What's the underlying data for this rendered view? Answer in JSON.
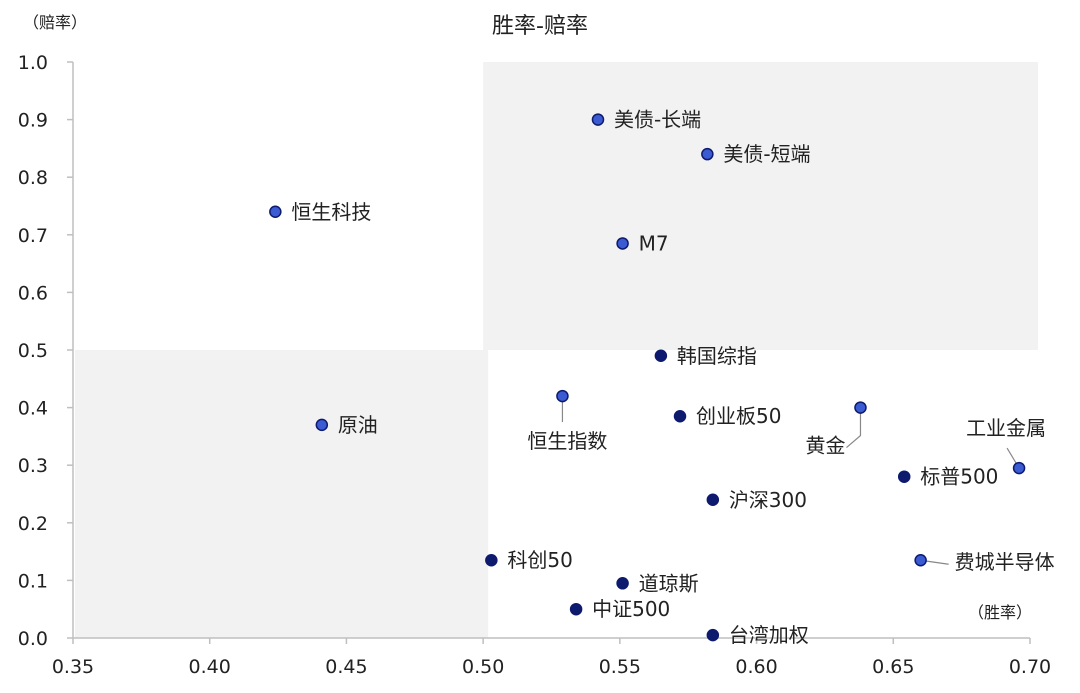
{
  "chart_data": {
    "type": "scatter",
    "title": "胜率-赔率",
    "xlabel": "（胜率）",
    "ylabel": "（赔率）",
    "xlim": [
      0.35,
      0.7
    ],
    "ylim": [
      0.0,
      1.0
    ],
    "x_ticks": [
      "0.35",
      "0.40",
      "0.45",
      "0.50",
      "0.55",
      "0.60",
      "0.65",
      "0.70"
    ],
    "y_ticks": [
      "0.0",
      "0.1",
      "0.2",
      "0.3",
      "0.4",
      "0.5",
      "0.6",
      "0.7",
      "0.8",
      "0.9",
      "1.0"
    ],
    "grid": false,
    "quadrant_split": {
      "x": 0.5,
      "y": 0.5
    },
    "shaded_quadrants": [
      "top-right",
      "bottom-left"
    ],
    "colors": {
      "point": "#0d1a6e",
      "point_highlight": "#3a5bd1",
      "shade": "#f2f2f2",
      "axis": "#bfbfbf"
    },
    "points": [
      {
        "name": "美债-长端",
        "x": 0.542,
        "y": 0.9
      },
      {
        "name": "美债-短端",
        "x": 0.582,
        "y": 0.84
      },
      {
        "name": "恒生科技",
        "x": 0.424,
        "y": 0.74
      },
      {
        "name": "M7",
        "x": 0.551,
        "y": 0.685
      },
      {
        "name": "韩国综指",
        "x": 0.565,
        "y": 0.49
      },
      {
        "name": "原油",
        "x": 0.441,
        "y": 0.37
      },
      {
        "name": "恒生指数",
        "x": 0.529,
        "y": 0.42
      },
      {
        "name": "创业板50",
        "x": 0.572,
        "y": 0.385
      },
      {
        "name": "黄金",
        "x": 0.638,
        "y": 0.4
      },
      {
        "name": "工业金属",
        "x": 0.696,
        "y": 0.295
      },
      {
        "name": "标普500",
        "x": 0.654,
        "y": 0.28
      },
      {
        "name": "沪深300",
        "x": 0.584,
        "y": 0.24
      },
      {
        "name": "科创50",
        "x": 0.503,
        "y": 0.135
      },
      {
        "name": "费城半导体",
        "x": 0.66,
        "y": 0.135
      },
      {
        "name": "道琼斯",
        "x": 0.551,
        "y": 0.095
      },
      {
        "name": "中证500",
        "x": 0.534,
        "y": 0.05
      },
      {
        "name": "台湾加权",
        "x": 0.584,
        "y": 0.005
      }
    ]
  }
}
